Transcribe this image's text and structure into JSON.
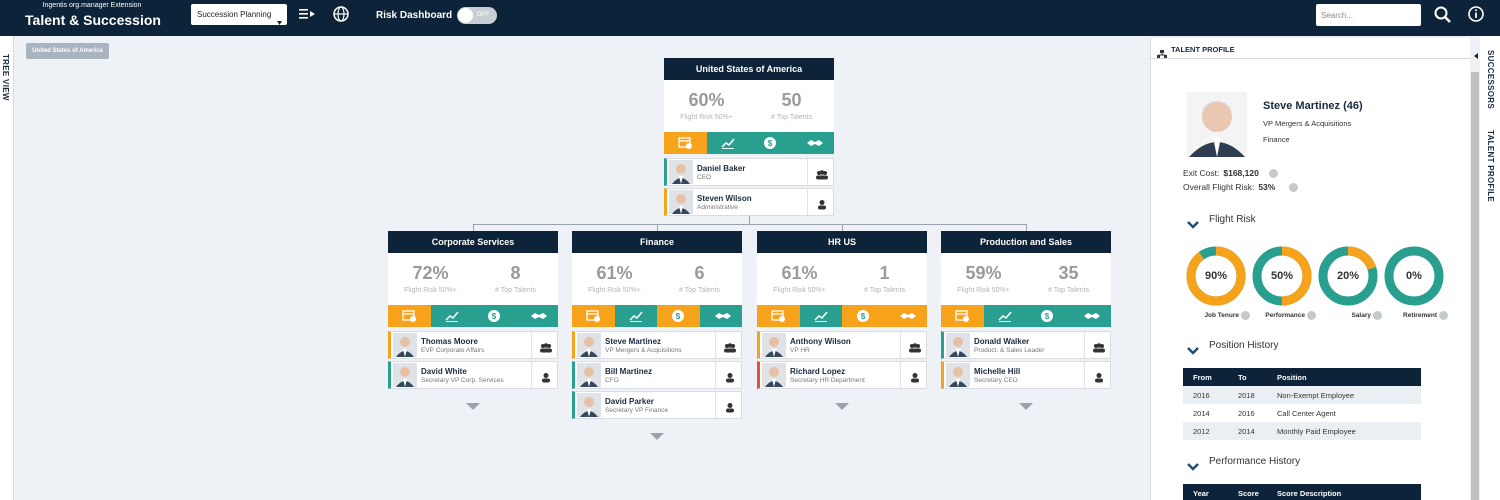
{
  "header": {
    "subtitle": "Ingentis org.manager Extension",
    "title": "Talent & Succession",
    "view_select": "Succession Planning",
    "risk_label": "Risk Dashboard",
    "risk_toggle": "OFF",
    "search_placeholder": "Search..."
  },
  "left_tab": "TREE VIEW",
  "breadcrumb": "United States of America",
  "org": {
    "root": {
      "name": "United States of America",
      "flight_risk": "60%",
      "flight_risk_label": "Flight Risk 50%+",
      "top_talents": "50",
      "top_talents_label": "# Top Talents",
      "icon_colors": [
        "#f7a21b",
        "#29a08f",
        "#29a08f",
        "#29a08f"
      ],
      "people": [
        {
          "name": "Daniel Baker",
          "role": "CEO",
          "accent": "#29a08f"
        },
        {
          "name": "Steven Wilson",
          "role": "Administrative",
          "accent": "#f7a21b"
        }
      ]
    },
    "units": [
      {
        "name": "Corporate Services",
        "flight_risk": "72%",
        "flight_risk_label": "Flight Risk 50%+",
        "top_talents": "8",
        "top_talents_label": "# Top Talents",
        "icon_colors": [
          "#f7a21b",
          "#29a08f",
          "#29a08f",
          "#29a08f"
        ],
        "people": [
          {
            "name": "Thomas Moore",
            "role": "EVP Corporate Affairs",
            "accent": "#f7a21b"
          },
          {
            "name": "David White",
            "role": "Secretary VP Corp. Services",
            "accent": "#29a08f"
          }
        ]
      },
      {
        "name": "Finance",
        "flight_risk": "61%",
        "flight_risk_label": "Flight Risk 50%+",
        "top_talents": "6",
        "top_talents_label": "# Top Talents",
        "icon_colors": [
          "#f7a21b",
          "#29a08f",
          "#f7a21b",
          "#29a08f"
        ],
        "people": [
          {
            "name": "Steve Martinez",
            "role": "VP Mergers & Acquisitions",
            "accent": "#f7a21b"
          },
          {
            "name": "Bill Martinez",
            "role": "CFO",
            "accent": "#29a08f"
          },
          {
            "name": "David Parker",
            "role": "Secretary VP Finance",
            "accent": "#29a08f"
          }
        ]
      },
      {
        "name": "HR US",
        "flight_risk": "61%",
        "flight_risk_label": "Flight Risk 50%+",
        "top_talents": "1",
        "top_talents_label": "# Top Talents",
        "icon_colors": [
          "#f7a21b",
          "#29a08f",
          "#f7a21b",
          "#f7a21b"
        ],
        "people": [
          {
            "name": "Anthony Wilson",
            "role": "VP HR",
            "accent": "#f7a21b"
          },
          {
            "name": "Richard Lopez",
            "role": "Secretary HR Department",
            "accent": "#e74c3c"
          }
        ]
      },
      {
        "name": "Production and Sales",
        "flight_risk": "59%",
        "flight_risk_label": "Flight Risk 50%+",
        "top_talents": "35",
        "top_talents_label": "# Top Talents",
        "icon_colors": [
          "#f7a21b",
          "#29a08f",
          "#29a08f",
          "#29a08f"
        ],
        "people": [
          {
            "name": "Donald Walker",
            "role": "Product. & Sales Leader",
            "accent": "#29a08f"
          },
          {
            "name": "Michelle Hill",
            "role": "Secretary CEO",
            "accent": "#f7a21b"
          }
        ]
      }
    ]
  },
  "profile": {
    "tab_title": "TALENT PROFILE",
    "name": "Steve Martinez (46)",
    "role": "VP Mergers & Acquisitions",
    "department": "Finance",
    "exit_cost_label": "Exit Cost:",
    "exit_cost": "$168,120",
    "overall_risk_label": "Overall Flight Risk:",
    "overall_risk": "53%",
    "flight_risk": {
      "title": "Flight Risk",
      "factors": [
        {
          "name": "Job Tenure",
          "value": 90,
          "label": "90%"
        },
        {
          "name": "Performance",
          "value": 50,
          "label": "50%"
        },
        {
          "name": "Salary",
          "value": 20,
          "label": "20%"
        },
        {
          "name": "Retirement",
          "value": 0,
          "label": "0%"
        }
      ]
    },
    "position_history": {
      "title": "Position History",
      "columns": [
        "From",
        "To",
        "Position"
      ],
      "rows": [
        [
          "2016",
          "2018",
          "Non-Exempt Employee"
        ],
        [
          "2014",
          "2016",
          "Call Center Agent"
        ],
        [
          "2012",
          "2014",
          "Monthly Paid Employee"
        ]
      ]
    },
    "performance_history": {
      "title": "Performance History",
      "columns": [
        "Year",
        "Score",
        "Score Description"
      ]
    }
  },
  "right_tabs": [
    "SUCCESSORS",
    "TALENT PROFILE"
  ]
}
